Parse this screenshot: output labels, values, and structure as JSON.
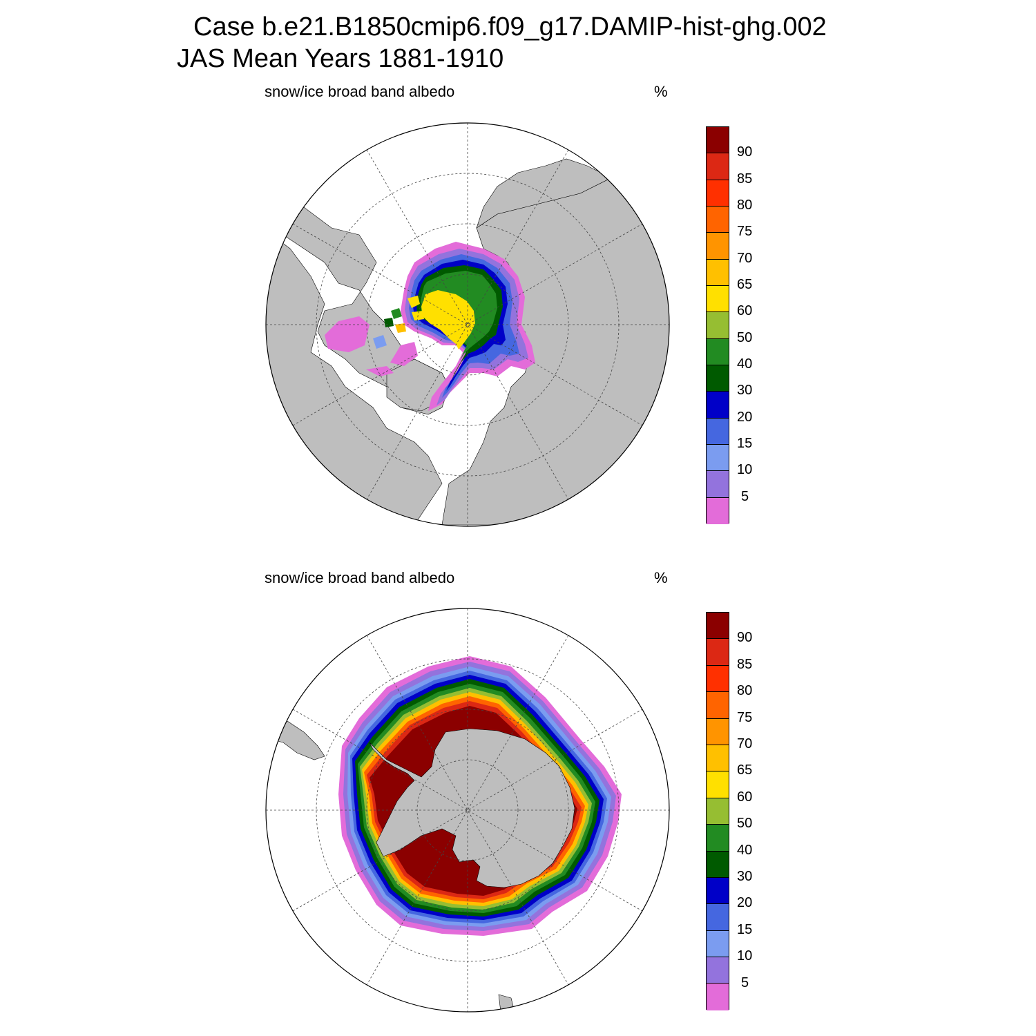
{
  "figure": {
    "title_line1": "Case b.e21.B1850cmip6.f09_g17.DAMIP-hist-ghg.002",
    "title_line2": "JAS Mean   Years 1881-1910"
  },
  "colorbar": {
    "levels": [
      "5",
      "10",
      "15",
      "20",
      "30",
      "40",
      "50",
      "60",
      "65",
      "70",
      "75",
      "80",
      "85",
      "90"
    ],
    "colors": [
      "#e36cd9",
      "#9373dd",
      "#7b9cf0",
      "#4567e0",
      "#0000c8",
      "#005a00",
      "#228b22",
      "#96be32",
      "#ffe000",
      "#ffc000",
      "#ff9400",
      "#ff6400",
      "#ff3000",
      "#dc2814",
      "#8b0000"
    ]
  },
  "colors": {
    "land": "#bebebe",
    "ocean": "#ffffff"
  },
  "panels": [
    {
      "id": "north",
      "title": "snow/ice broad band albedo",
      "units": "%",
      "hemisphere": "Northern"
    },
    {
      "id": "south",
      "title": "snow/ice broad band albedo",
      "units": "%",
      "hemisphere": "Southern"
    }
  ]
}
